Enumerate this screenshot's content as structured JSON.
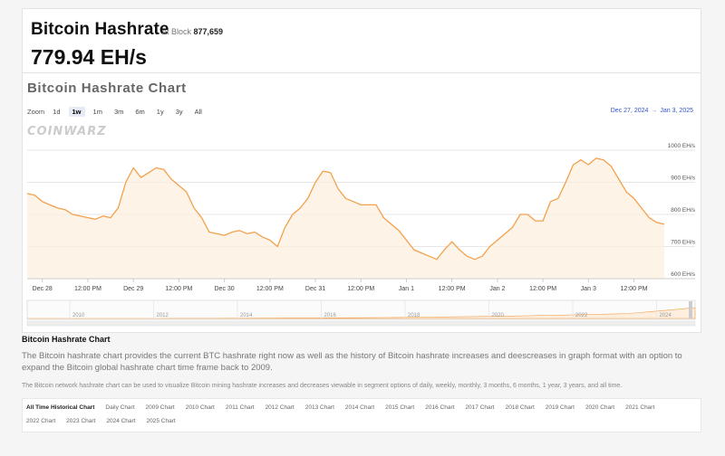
{
  "header": {
    "title": "Bitcoin Hashrate",
    "at_block_label": "at Block",
    "block_number": "877,659",
    "current_value": "779.94 EH/s"
  },
  "chart_panel": {
    "title": "Bitcoin Hashrate Chart",
    "zoom_label": "Zoom",
    "zoom_options": [
      "1d",
      "1w",
      "1m",
      "3m",
      "6m",
      "1y",
      "3y",
      "All"
    ],
    "zoom_active": "1w",
    "range_from": "Dec 27, 2024",
    "range_arrow": "→",
    "range_to": "Jan 3, 2025",
    "logo_text": "COINWARZ",
    "colors": {
      "line": "#f3a04c",
      "fill": "#fdeedd",
      "grid": "#e6e6e6",
      "link": "#3355cc"
    }
  },
  "chart_data": {
    "type": "area",
    "title": "Bitcoin Hashrate Chart",
    "ylabel": "EH/s",
    "ylim": [
      600,
      1000
    ],
    "yticks": [
      600,
      700,
      800,
      900,
      1000
    ],
    "ytick_labels": [
      "600 EH/s",
      "700 EH/s",
      "800 EH/s",
      "900 EH/s",
      "1000 EH/s"
    ],
    "x_range_hours": [
      -4,
      164
    ],
    "xticks": [
      {
        "h": 0,
        "label": "Dec 28"
      },
      {
        "h": 12,
        "label": "12:00 PM"
      },
      {
        "h": 24,
        "label": "Dec 29"
      },
      {
        "h": 36,
        "label": "12:00 PM"
      },
      {
        "h": 48,
        "label": "Dec 30"
      },
      {
        "h": 60,
        "label": "12:00 PM"
      },
      {
        "h": 72,
        "label": "Dec 31"
      },
      {
        "h": 84,
        "label": "12:00 PM"
      },
      {
        "h": 96,
        "label": "Jan 1"
      },
      {
        "h": 108,
        "label": "12:00 PM"
      },
      {
        "h": 120,
        "label": "Jan 2"
      },
      {
        "h": 132,
        "label": "12:00 PM"
      },
      {
        "h": 144,
        "label": "Jan 3"
      },
      {
        "h": 156,
        "label": "12:00 PM"
      }
    ],
    "series": [
      {
        "name": "Hashrate (EH/s)",
        "x": [
          -4,
          -2,
          0,
          2,
          4,
          6,
          8,
          10,
          12,
          14,
          16,
          18,
          20,
          22,
          24,
          26,
          28,
          30,
          32,
          34,
          36,
          38,
          40,
          42,
          44,
          46,
          48,
          50,
          52,
          54,
          56,
          58,
          60,
          62,
          64,
          66,
          68,
          70,
          72,
          74,
          76,
          78,
          80,
          82,
          84,
          86,
          88,
          90,
          92,
          94,
          96,
          98,
          100,
          102,
          104,
          106,
          108,
          110,
          112,
          114,
          116,
          118,
          120,
          122,
          124,
          126,
          128,
          130,
          132,
          134,
          136,
          138,
          140,
          142,
          144,
          146,
          148,
          150,
          152,
          154,
          156,
          158,
          160,
          162,
          164
        ],
        "values": [
          865,
          860,
          840,
          830,
          820,
          815,
          800,
          795,
          790,
          785,
          795,
          790,
          820,
          900,
          945,
          915,
          930,
          945,
          940,
          910,
          890,
          870,
          820,
          790,
          745,
          740,
          735,
          745,
          750,
          740,
          745,
          730,
          720,
          700,
          760,
          800,
          820,
          850,
          900,
          935,
          930,
          880,
          850,
          840,
          830,
          830,
          830,
          790,
          770,
          750,
          720,
          690,
          680,
          670,
          660,
          690,
          715,
          690,
          670,
          660,
          670,
          700,
          720,
          740,
          760,
          800,
          800,
          780,
          780,
          840,
          850,
          900,
          955,
          970,
          955,
          975,
          970,
          950,
          910,
          870,
          850,
          820,
          790,
          775,
          770
        ]
      }
    ],
    "navigator_years": [
      "2010",
      "2012",
      "2014",
      "2016",
      "2018",
      "2020",
      "2022",
      "2024"
    ]
  },
  "description": {
    "title": "Bitcoin Hashrate Chart",
    "paragraph1": "The Bitcoin hashrate chart provides the current BTC hashrate right now as well as the history of Bitcoin hashrate increases and deescreases in graph format with an option to expand the Bitcoin global hashrate chart time frame back to 2009.",
    "paragraph2": "The Bitcoin network hashrate chart can be used to visualize Bitcoin mining hashrate increases and decreases viewable in segment options of daily, weekly, monthly, 3 months, 6 months, 1 year, 3 years, and all time."
  },
  "chart_links": [
    "All Time Historical Chart",
    "Daily Chart",
    "2009 Chart",
    "2010 Chart",
    "2011 Chart",
    "2012 Chart",
    "2013 Chart",
    "2014 Chart",
    "2015 Chart",
    "2016 Chart",
    "2017 Chart",
    "2018 Chart",
    "2019 Chart",
    "2020 Chart",
    "2021 Chart",
    "2022 Chart",
    "2023 Chart",
    "2024 Chart",
    "2025 Chart"
  ]
}
